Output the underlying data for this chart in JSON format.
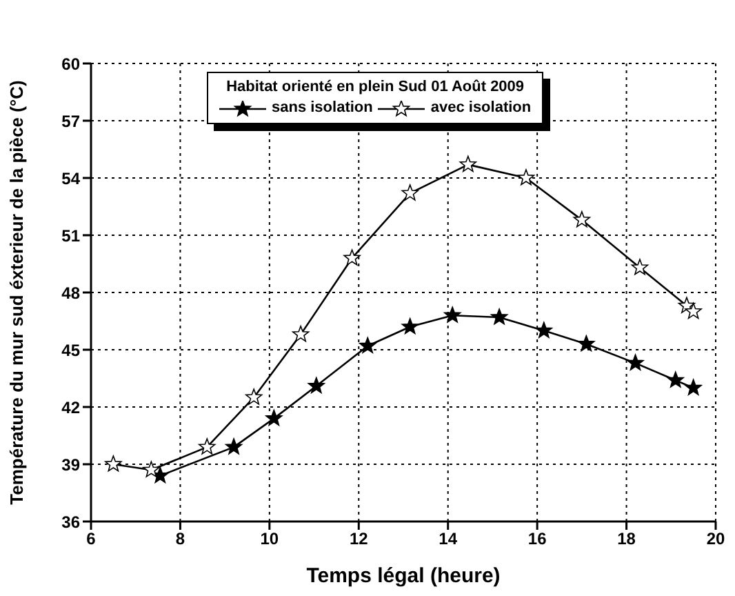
{
  "chart_data": {
    "type": "line",
    "legend_title": "Habitat orienté en plein Sud 01 Août 2009",
    "xlabel": "Temps légal  (heure)",
    "ylabel": "Température du mur sud éxterieur de la pièce  (°C)",
    "xlim": [
      6,
      20
    ],
    "xticks": [
      6,
      8,
      10,
      12,
      14,
      16,
      18,
      20
    ],
    "ylim": [
      36,
      60
    ],
    "yticks": [
      36,
      39,
      42,
      45,
      48,
      51,
      54,
      57,
      60
    ],
    "grid": true,
    "legend": "top",
    "marker": "star",
    "line_style": "solid",
    "series": [
      {
        "name": "sans isolation",
        "color": "#000000",
        "x": [
          7.55,
          9.2,
          10.1,
          11.05,
          12.2,
          13.15,
          14.1,
          15.15,
          16.15,
          17.1,
          18.2,
          19.1,
          19.5
        ],
        "values": [
          38.4,
          39.9,
          41.4,
          43.1,
          45.2,
          46.2,
          46.8,
          46.7,
          46,
          45.3,
          44.3,
          43.4,
          43
        ]
      },
      {
        "name": "avec isolation",
        "color": "#000000",
        "x": [
          6.5,
          7.35,
          8.6,
          9.65,
          10.7,
          11.85,
          13.15,
          14.45,
          15.75,
          17,
          18.3,
          19.35,
          19.5
        ],
        "values": [
          39,
          38.7,
          39.9,
          42.5,
          45.8,
          49.8,
          53.2,
          54.7,
          54,
          51.8,
          49.3,
          47.3,
          47
        ]
      }
    ]
  }
}
